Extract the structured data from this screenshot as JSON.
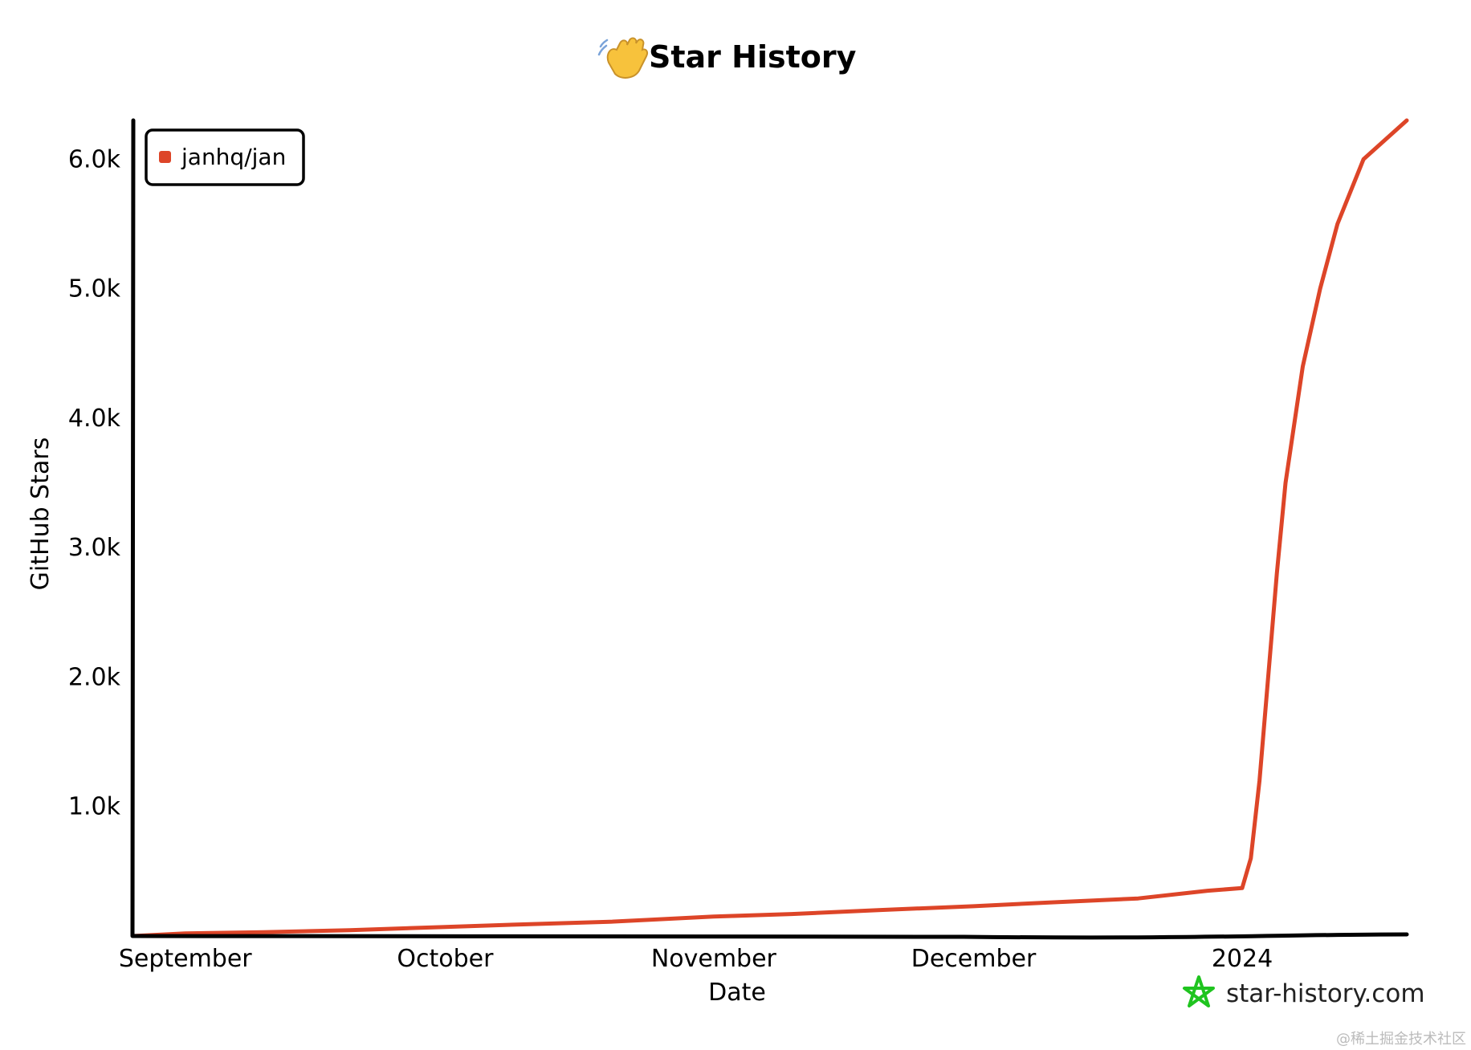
{
  "chart_data": {
    "type": "line",
    "title": "Star History",
    "title_icon": "waving-hand-icon",
    "xlabel": "Date",
    "ylabel": "GitHub Stars",
    "x_ticks": [
      "September",
      "October",
      "November",
      "December",
      "2024"
    ],
    "x_tick_dates": [
      "2023-09-01",
      "2023-10-01",
      "2023-11-01",
      "2023-12-01",
      "2024-01-01"
    ],
    "xlim": [
      "2023-08-26",
      "2024-01-20"
    ],
    "y_ticks": [
      "1.0k",
      "2.0k",
      "3.0k",
      "4.0k",
      "5.0k",
      "6.0k"
    ],
    "y_tick_values": [
      1000,
      2000,
      3000,
      4000,
      5000,
      6000
    ],
    "ylim": [
      0,
      6300
    ],
    "legend_position": "top-left",
    "series": [
      {
        "name": "janhq/jan",
        "color": "#dd4528",
        "points": [
          {
            "x": "2023-08-26",
            "y": 0
          },
          {
            "x": "2023-09-01",
            "y": 20
          },
          {
            "x": "2023-09-10",
            "y": 30
          },
          {
            "x": "2023-09-20",
            "y": 45
          },
          {
            "x": "2023-10-01",
            "y": 70
          },
          {
            "x": "2023-10-10",
            "y": 90
          },
          {
            "x": "2023-10-20",
            "y": 110
          },
          {
            "x": "2023-11-01",
            "y": 150
          },
          {
            "x": "2023-11-10",
            "y": 170
          },
          {
            "x": "2023-11-20",
            "y": 200
          },
          {
            "x": "2023-12-01",
            "y": 230
          },
          {
            "x": "2023-12-10",
            "y": 260
          },
          {
            "x": "2023-12-20",
            "y": 290
          },
          {
            "x": "2023-12-28",
            "y": 350
          },
          {
            "x": "2024-01-01",
            "y": 370
          },
          {
            "x": "2024-01-02",
            "y": 600
          },
          {
            "x": "2024-01-03",
            "y": 1200
          },
          {
            "x": "2024-01-04",
            "y": 2000
          },
          {
            "x": "2024-01-05",
            "y": 2800
          },
          {
            "x": "2024-01-06",
            "y": 3500
          },
          {
            "x": "2024-01-08",
            "y": 4400
          },
          {
            "x": "2024-01-10",
            "y": 5000
          },
          {
            "x": "2024-01-12",
            "y": 5500
          },
          {
            "x": "2024-01-15",
            "y": 6000
          },
          {
            "x": "2024-01-20",
            "y": 6300
          }
        ]
      }
    ],
    "axis_color": "#000000"
  },
  "branding": {
    "logo_icon": "star-history-logo-icon",
    "logo_color": "#1fc41f",
    "text": "star-history.com"
  },
  "watermark": {
    "text": "@稀土掘金技术社区"
  }
}
